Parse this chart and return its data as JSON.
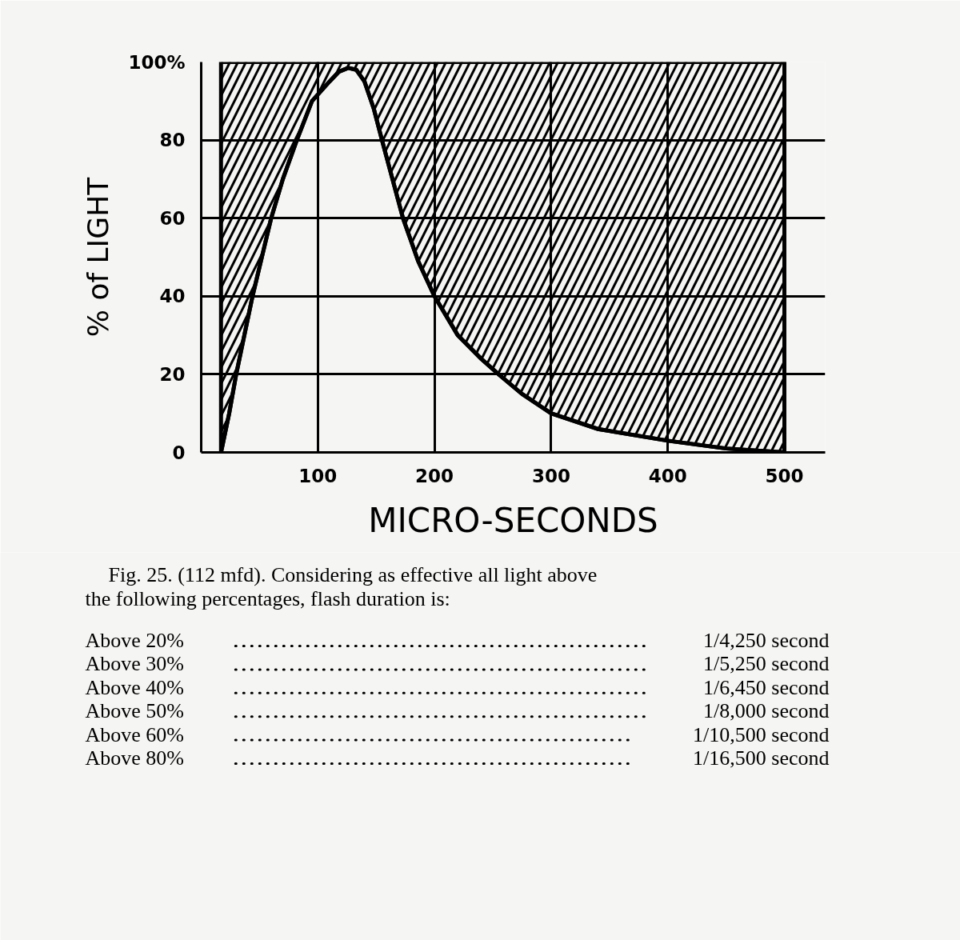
{
  "chart_data": {
    "type": "line",
    "xlabel": "MICRO-SECONDS",
    "ylabel": "% of LIGHT",
    "x": [
      17,
      24,
      30,
      37,
      44,
      52,
      60,
      70,
      82,
      95,
      110,
      118,
      126,
      133,
      140,
      148,
      155,
      164,
      173,
      186,
      200,
      220,
      240,
      255,
      275,
      300,
      340,
      400,
      450,
      500
    ],
    "series": [
      {
        "color": "#000000",
        "values": [
          0,
          10,
          20,
          30,
          40,
          50,
          60,
          70,
          80,
          90,
          95,
          97.5,
          98.5,
          98,
          95,
          88,
          80,
          70,
          60,
          49,
          40,
          30,
          24,
          20,
          15,
          10,
          6,
          3,
          1,
          0
        ],
        "lower": [
          0,
          10,
          20,
          30,
          40,
          50,
          60,
          70,
          80,
          90,
          95,
          97.5,
          98.5,
          98,
          95,
          88,
          80,
          70,
          60,
          49,
          40,
          30,
          24,
          20,
          15,
          10,
          6,
          3,
          1,
          0
        ],
        "upper": [
          100,
          100,
          100,
          100,
          100,
          100,
          100,
          100,
          100,
          100,
          100,
          100,
          100,
          100,
          100,
          100,
          100,
          100,
          100,
          100,
          100,
          100,
          100,
          100,
          100,
          100,
          100,
          100,
          100,
          100
        ]
      }
    ],
    "xlim": [
      0,
      535
    ],
    "ylim": [
      0,
      100
    ],
    "xticks": [
      100,
      200,
      300,
      400,
      500
    ],
    "yticks": [
      0,
      20,
      40,
      60,
      80,
      {
        "value": 100,
        "label": "100%"
      }
    ],
    "grid": true,
    "annotations": [
      "Fig. 25. (112 mfd). Considering as effective all light above the following percentages, flash duration is:",
      "Above 20%",
      "1/4,250 second",
      "Above 30%",
      "1/5,250 second",
      "Above 40%",
      "1/6,450 second",
      "Above 50%",
      "1/8,000 second",
      "Above 60%",
      "1/10,500 second",
      "Above 80%",
      "1/16,500 second"
    ]
  }
}
